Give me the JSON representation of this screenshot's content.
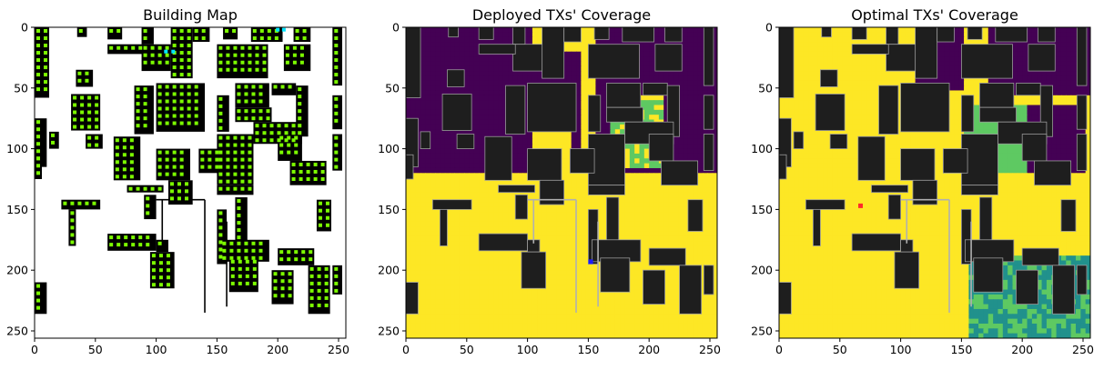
{
  "chart_data": [
    {
      "type": "heatmap",
      "title": "Building Map",
      "xticks": [
        0,
        50,
        100,
        150,
        200,
        250
      ],
      "yticks": [
        0,
        50,
        100,
        150,
        200,
        250
      ],
      "xlim": [
        0,
        256
      ],
      "ylim": [
        256,
        0
      ],
      "colors": {
        "background": "#ffffff",
        "building": "#000000",
        "roof_tx": "#7cfc00",
        "deployed_tx": "#00e5ff"
      }
    },
    {
      "type": "heatmap",
      "title": "Deployed TXs' Coverage",
      "xticks": [
        0,
        50,
        100,
        150,
        200,
        250
      ],
      "yticks": [
        0,
        50,
        100,
        150,
        200,
        250
      ],
      "xlim": [
        0,
        256
      ],
      "ylim": [
        256,
        0
      ],
      "colors": {
        "strong": "#fde725",
        "good": "#5ec962",
        "fair": "#21918c",
        "none": "#440154",
        "building": "#1e1e1e",
        "tx": "#1a1aff"
      }
    },
    {
      "type": "heatmap",
      "title": "Optimal TXs' Coverage",
      "xticks": [
        0,
        50,
        100,
        150,
        200,
        250
      ],
      "yticks": [
        0,
        50,
        100,
        150,
        200,
        250
      ],
      "xlim": [
        0,
        256
      ],
      "ylim": [
        256,
        0
      ],
      "colors": {
        "strong": "#fde725",
        "good": "#5ec962",
        "fair": "#21918c",
        "none": "#440154",
        "building": "#1e1e1e",
        "tx": "#ff2a2a"
      }
    }
  ]
}
